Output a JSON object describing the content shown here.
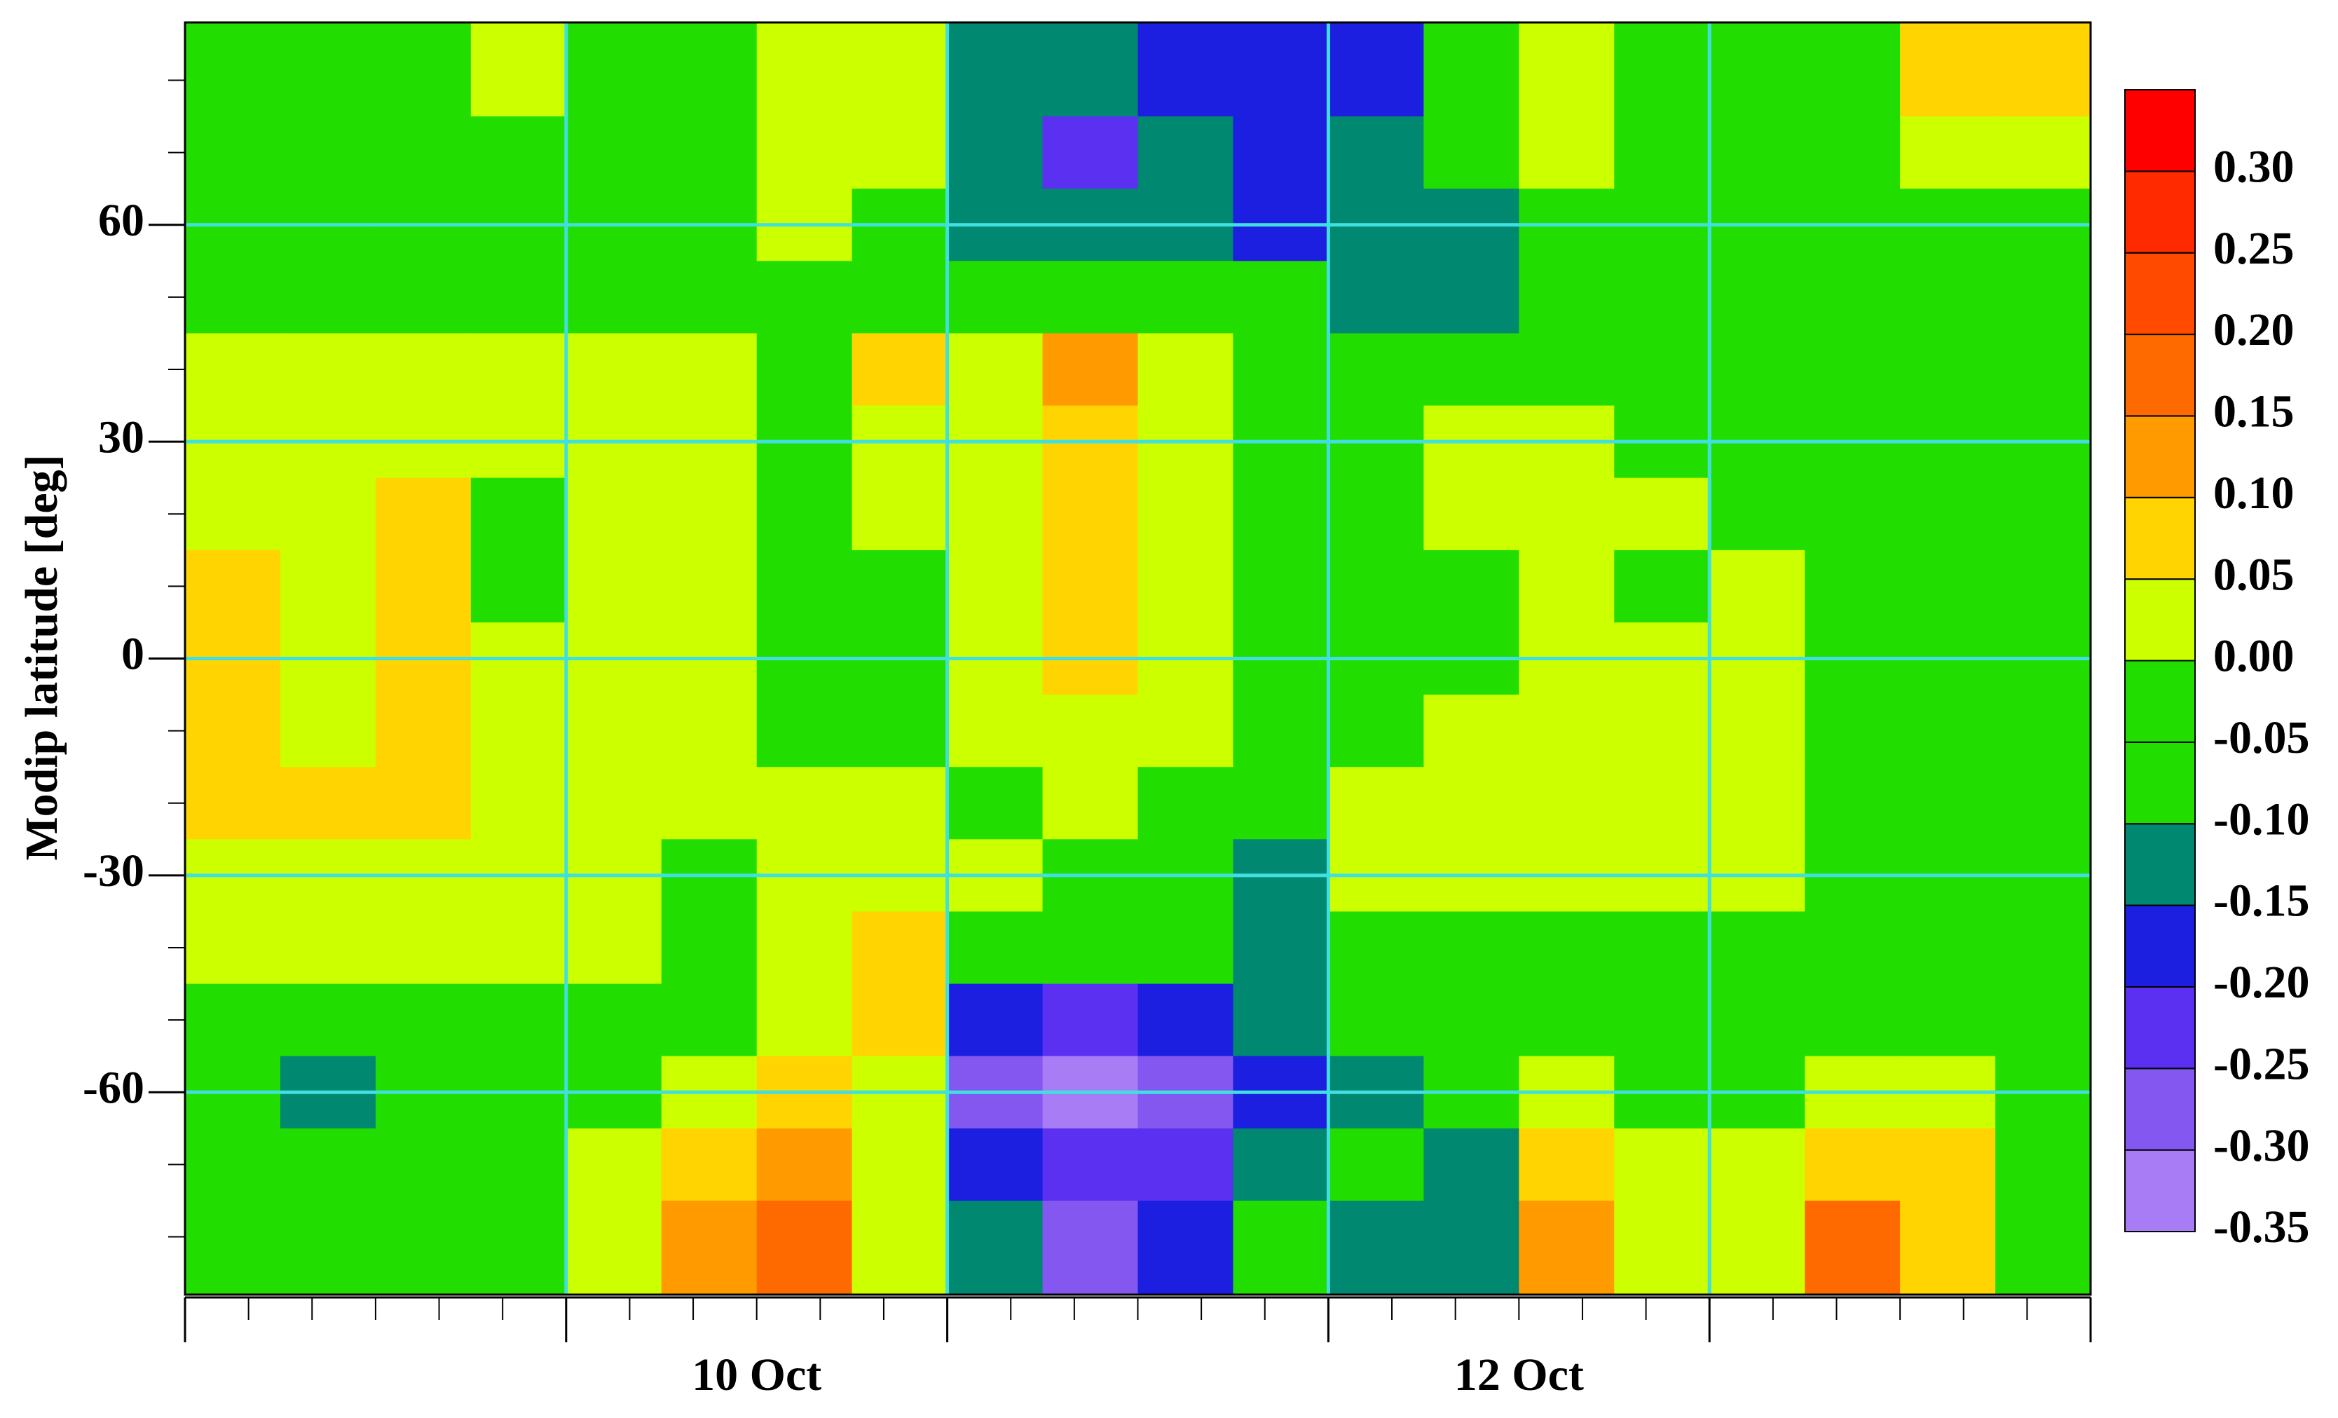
{
  "chart_data": {
    "type": "contour",
    "ylabel": "Modip latitude [deg]",
    "categories": [
      null,
      "10 Oct",
      null,
      "12 Oct",
      null
    ],
    "xlim": [
      0,
      5
    ],
    "ylim": [
      -88,
      88
    ],
    "yticks": [
      -60,
      -30,
      0,
      30,
      60
    ],
    "grid": true,
    "grid_color": "#40e0e0",
    "x": [
      0.125,
      0.375,
      0.625,
      0.875,
      1.125,
      1.375,
      1.625,
      1.875,
      2.125,
      2.375,
      2.625,
      2.875,
      3.125,
      3.375,
      3.625,
      3.875,
      4.125,
      4.375,
      4.625,
      4.875
    ],
    "y": [
      80,
      70,
      60,
      50,
      40,
      30,
      20,
      10,
      0,
      -10,
      -20,
      -30,
      -40,
      -50,
      -60,
      -70,
      -80
    ],
    "z": [
      [
        -0.04,
        -0.04,
        -0.04,
        0.02,
        -0.04,
        -0.04,
        0.02,
        0.02,
        -0.12,
        -0.12,
        -0.17,
        -0.17,
        -0.17,
        -0.04,
        0.02,
        -0.04,
        -0.04,
        -0.04,
        0.07,
        0.07
      ],
      [
        -0.04,
        -0.04,
        -0.04,
        -0.04,
        -0.04,
        -0.04,
        0.02,
        0.02,
        -0.12,
        -0.22,
        -0.12,
        -0.17,
        -0.12,
        -0.04,
        0.02,
        -0.04,
        -0.04,
        -0.04,
        0.02,
        0.02
      ],
      [
        -0.04,
        -0.04,
        -0.04,
        -0.04,
        -0.04,
        -0.04,
        0.02,
        -0.04,
        -0.12,
        -0.12,
        -0.12,
        -0.17,
        -0.12,
        -0.12,
        -0.04,
        -0.04,
        -0.04,
        -0.04,
        -0.04,
        -0.04
      ],
      [
        -0.04,
        -0.04,
        -0.04,
        -0.04,
        -0.04,
        -0.04,
        -0.04,
        -0.04,
        -0.04,
        -0.04,
        -0.04,
        -0.04,
        -0.12,
        -0.12,
        -0.04,
        -0.04,
        -0.04,
        -0.04,
        -0.04,
        -0.04
      ],
      [
        0.02,
        0.02,
        0.02,
        0.02,
        0.02,
        0.02,
        -0.04,
        0.07,
        0.02,
        0.12,
        0.02,
        -0.04,
        -0.04,
        -0.04,
        -0.04,
        -0.04,
        -0.04,
        -0.04,
        -0.04,
        -0.04
      ],
      [
        0.02,
        0.02,
        0.02,
        0.02,
        0.02,
        0.02,
        -0.04,
        0.02,
        0.02,
        0.07,
        0.02,
        -0.04,
        -0.04,
        0.02,
        0.02,
        -0.04,
        -0.04,
        -0.04,
        -0.04,
        -0.04
      ],
      [
        0.02,
        0.02,
        0.07,
        -0.04,
        0.02,
        0.02,
        -0.04,
        0.02,
        0.02,
        0.07,
        0.02,
        -0.04,
        -0.04,
        0.02,
        0.02,
        0.02,
        -0.04,
        -0.04,
        -0.04,
        -0.04
      ],
      [
        0.07,
        0.02,
        0.07,
        -0.04,
        0.02,
        0.02,
        -0.04,
        -0.04,
        0.02,
        0.07,
        0.02,
        -0.04,
        -0.04,
        -0.04,
        0.02,
        -0.04,
        0.02,
        -0.04,
        -0.04,
        -0.04
      ],
      [
        0.07,
        0.02,
        0.07,
        0.02,
        0.02,
        0.02,
        -0.04,
        -0.04,
        0.02,
        0.07,
        0.02,
        -0.04,
        -0.04,
        -0.04,
        0.02,
        0.02,
        0.02,
        -0.04,
        -0.04,
        -0.04
      ],
      [
        0.07,
        0.02,
        0.07,
        0.02,
        0.02,
        0.02,
        -0.04,
        -0.04,
        0.02,
        0.02,
        0.02,
        -0.04,
        -0.04,
        0.02,
        0.02,
        0.02,
        0.02,
        -0.04,
        -0.04,
        -0.04
      ],
      [
        0.07,
        0.07,
        0.07,
        0.02,
        0.02,
        0.02,
        0.02,
        0.02,
        -0.04,
        0.02,
        -0.04,
        -0.04,
        0.02,
        0.02,
        0.02,
        0.02,
        0.02,
        -0.04,
        -0.04,
        -0.04
      ],
      [
        0.02,
        0.02,
        0.02,
        0.02,
        0.02,
        -0.04,
        0.02,
        0.02,
        0.02,
        -0.04,
        -0.04,
        -0.12,
        0.02,
        0.02,
        0.02,
        0.02,
        0.02,
        -0.04,
        -0.04,
        -0.04
      ],
      [
        0.02,
        0.02,
        0.02,
        0.02,
        0.02,
        -0.04,
        0.02,
        0.07,
        -0.04,
        -0.04,
        -0.04,
        -0.12,
        -0.04,
        -0.04,
        -0.04,
        -0.04,
        -0.04,
        -0.04,
        -0.04,
        -0.04
      ],
      [
        -0.04,
        -0.04,
        -0.04,
        -0.04,
        -0.04,
        -0.04,
        0.02,
        0.07,
        -0.17,
        -0.22,
        -0.17,
        -0.12,
        -0.04,
        -0.04,
        -0.04,
        -0.04,
        -0.04,
        -0.04,
        -0.04,
        -0.04
      ],
      [
        -0.04,
        -0.12,
        -0.04,
        -0.04,
        -0.04,
        0.02,
        0.07,
        0.02,
        -0.27,
        -0.32,
        -0.27,
        -0.17,
        -0.12,
        -0.04,
        0.02,
        -0.04,
        -0.04,
        0.02,
        0.02,
        -0.04
      ],
      [
        -0.04,
        -0.04,
        -0.04,
        -0.04,
        0.02,
        0.07,
        0.12,
        0.02,
        -0.17,
        -0.22,
        -0.22,
        -0.12,
        -0.04,
        -0.12,
        0.07,
        0.02,
        0.02,
        0.07,
        0.07,
        -0.04
      ],
      [
        -0.04,
        -0.04,
        -0.04,
        -0.04,
        0.02,
        0.12,
        0.17,
        0.02,
        -0.12,
        -0.27,
        -0.17,
        -0.04,
        -0.12,
        -0.12,
        0.12,
        0.02,
        0.02,
        0.17,
        0.07,
        -0.04
      ]
    ],
    "levels": [
      {
        "value": -0.35,
        "label": "-0.35"
      },
      {
        "value": -0.3,
        "label": "-0.30"
      },
      {
        "value": -0.25,
        "label": "-0.25"
      },
      {
        "value": -0.2,
        "label": "-0.20"
      },
      {
        "value": -0.15,
        "label": "-0.15"
      },
      {
        "value": -0.1,
        "label": "-0.10"
      },
      {
        "value": -0.05,
        "label": "-0.05"
      },
      {
        "value": 0,
        "label": "0.00"
      },
      {
        "value": 0.05,
        "label": "0.05"
      },
      {
        "value": 0.1,
        "label": "0.10"
      },
      {
        "value": 0.15,
        "label": "0.15"
      },
      {
        "value": 0.2,
        "label": "0.20"
      },
      {
        "value": 0.25,
        "label": "0.25"
      },
      {
        "value": 0.3,
        "label": "0.30"
      }
    ],
    "colors": [
      "#a77cf5",
      "#8457f0",
      "#5b30f0",
      "#1c1ee0",
      "#008870",
      "#22dd00",
      "#22dd00",
      "#ccff00",
      "#ffd400",
      "#ff9a00",
      "#ff6a00",
      "#ff4a00",
      "#ff2a00",
      "#ff0000"
    ]
  }
}
